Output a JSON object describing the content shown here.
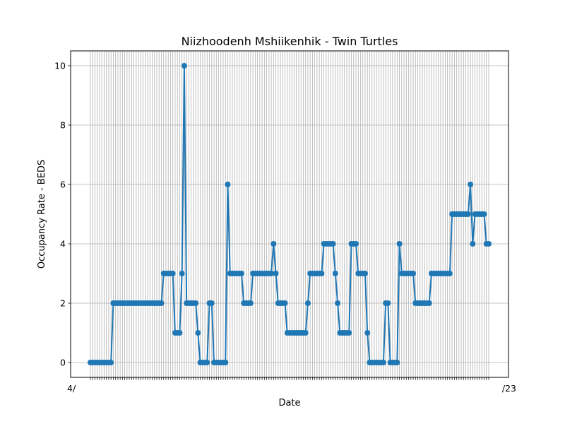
{
  "chart_data": {
    "type": "line",
    "title": "Niizhoodenh Mshiikenhik - Twin Turtles",
    "xlabel": "Date",
    "ylabel": "Occupancy Rate - BEDS",
    "ylim": [
      -0.5,
      10.5
    ],
    "y_ticks": [
      0,
      2,
      4,
      6,
      8,
      10
    ],
    "grid": true,
    "marker": "circle",
    "line_color": "#1f77b4",
    "x_tick_label_start": "4/",
    "x_tick_label_end": "/23",
    "series": [
      {
        "values": [
          0,
          0,
          0,
          0,
          0,
          0,
          0,
          0,
          0,
          0,
          2,
          2,
          2,
          2,
          2,
          2,
          2,
          2,
          2,
          2,
          2,
          2,
          2,
          2,
          2,
          2,
          2,
          2,
          2,
          2,
          2,
          2,
          3,
          3,
          3,
          3,
          3,
          1,
          1,
          1,
          3,
          10,
          2,
          2,
          2,
          2,
          2,
          1,
          0,
          0,
          0,
          0,
          2,
          2,
          0,
          0,
          0,
          0,
          0,
          0,
          6,
          3,
          3,
          3,
          3,
          3,
          3,
          2,
          2,
          2,
          2,
          3,
          3,
          3,
          3,
          3,
          3,
          3,
          3,
          3,
          4,
          3,
          2,
          2,
          2,
          2,
          1,
          1,
          1,
          1,
          1,
          1,
          1,
          1,
          1,
          2,
          3,
          3,
          3,
          3,
          3,
          3,
          4,
          4,
          4,
          4,
          4,
          3,
          2,
          1,
          1,
          1,
          1,
          1,
          4,
          4,
          4,
          3,
          3,
          3,
          3,
          1,
          0,
          0,
          0,
          0,
          0,
          0,
          0,
          2,
          2,
          0,
          0,
          0,
          0,
          4,
          3,
          3,
          3,
          3,
          3,
          3,
          2,
          2,
          2,
          2,
          2,
          2,
          2,
          3,
          3,
          3,
          3,
          3,
          3,
          3,
          3,
          3,
          5,
          5,
          5,
          5,
          5,
          5,
          5,
          5,
          6,
          4,
          5,
          5,
          5,
          5,
          5,
          4,
          4
        ]
      }
    ]
  }
}
